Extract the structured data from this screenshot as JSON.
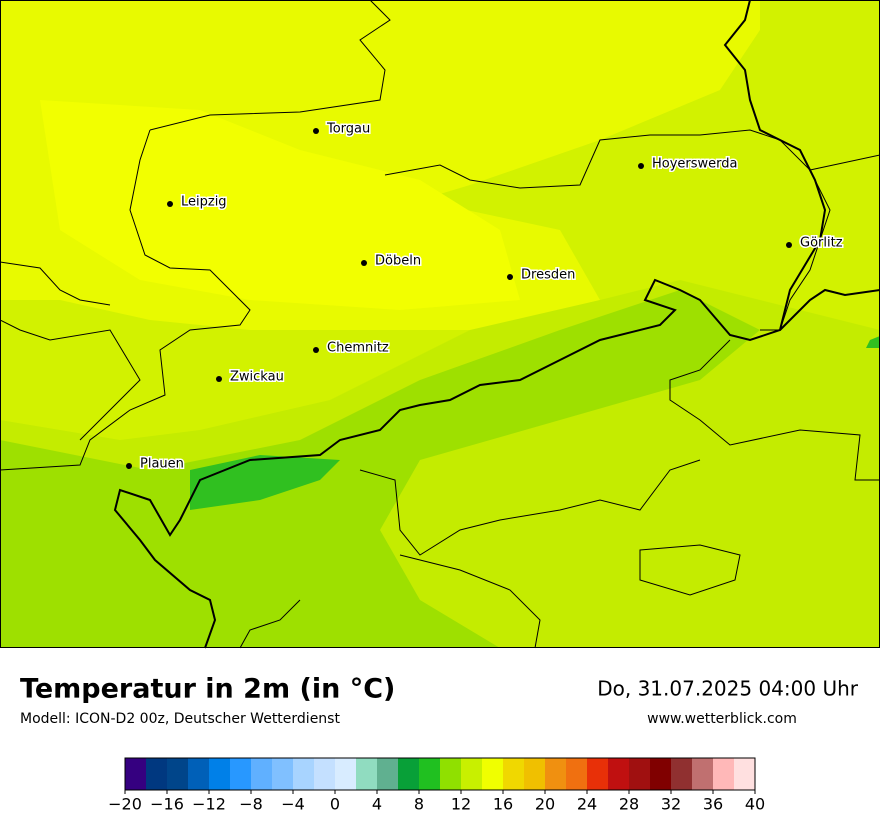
{
  "map": {
    "cities": [
      "Torgau",
      "Leipzig",
      "Döbeln",
      "Dresden",
      "Hoyerswerda",
      "Görlitz",
      "Chemnitz",
      "Zwickau",
      "Plauen"
    ]
  },
  "header": {
    "title": "Temperatur in 2m (in °C)",
    "subtitle": "Modell: ICON-D2 00z, Deutscher Wetterdienst",
    "date": "Do, 31.07.2025 04:00 Uhr",
    "website": "www.wetterblick.com"
  },
  "colorbar": {
    "lim": [
      -20,
      40
    ],
    "colors": [
      "#350080",
      "#003880",
      "#00458a",
      "#0060b8",
      "#0080e8",
      "#2898ff",
      "#60b0ff",
      "#80c0ff",
      "#a8d4ff",
      "#c4e0ff",
      "#d8ecff",
      "#90dcc0",
      "#60b090",
      "#08a038",
      "#20c020",
      "#90e000",
      "#c8f000",
      "#f0ff00",
      "#f0d800",
      "#f0c000",
      "#f09010",
      "#f07010",
      "#e83008",
      "#c01010",
      "#a01010",
      "#800000",
      "#903030",
      "#c07070",
      "#ffb8b8",
      "#ffe0e0"
    ],
    "ticks": [
      {
        "value": -20,
        "label": "−20"
      },
      {
        "value": -16,
        "label": "−16"
      },
      {
        "value": -12,
        "label": "−12"
      },
      {
        "value": -8,
        "label": "−8"
      },
      {
        "value": -4,
        "label": "−4"
      },
      0,
      4,
      8,
      12,
      16,
      20,
      24,
      28,
      32,
      36,
      40
    ]
  }
}
